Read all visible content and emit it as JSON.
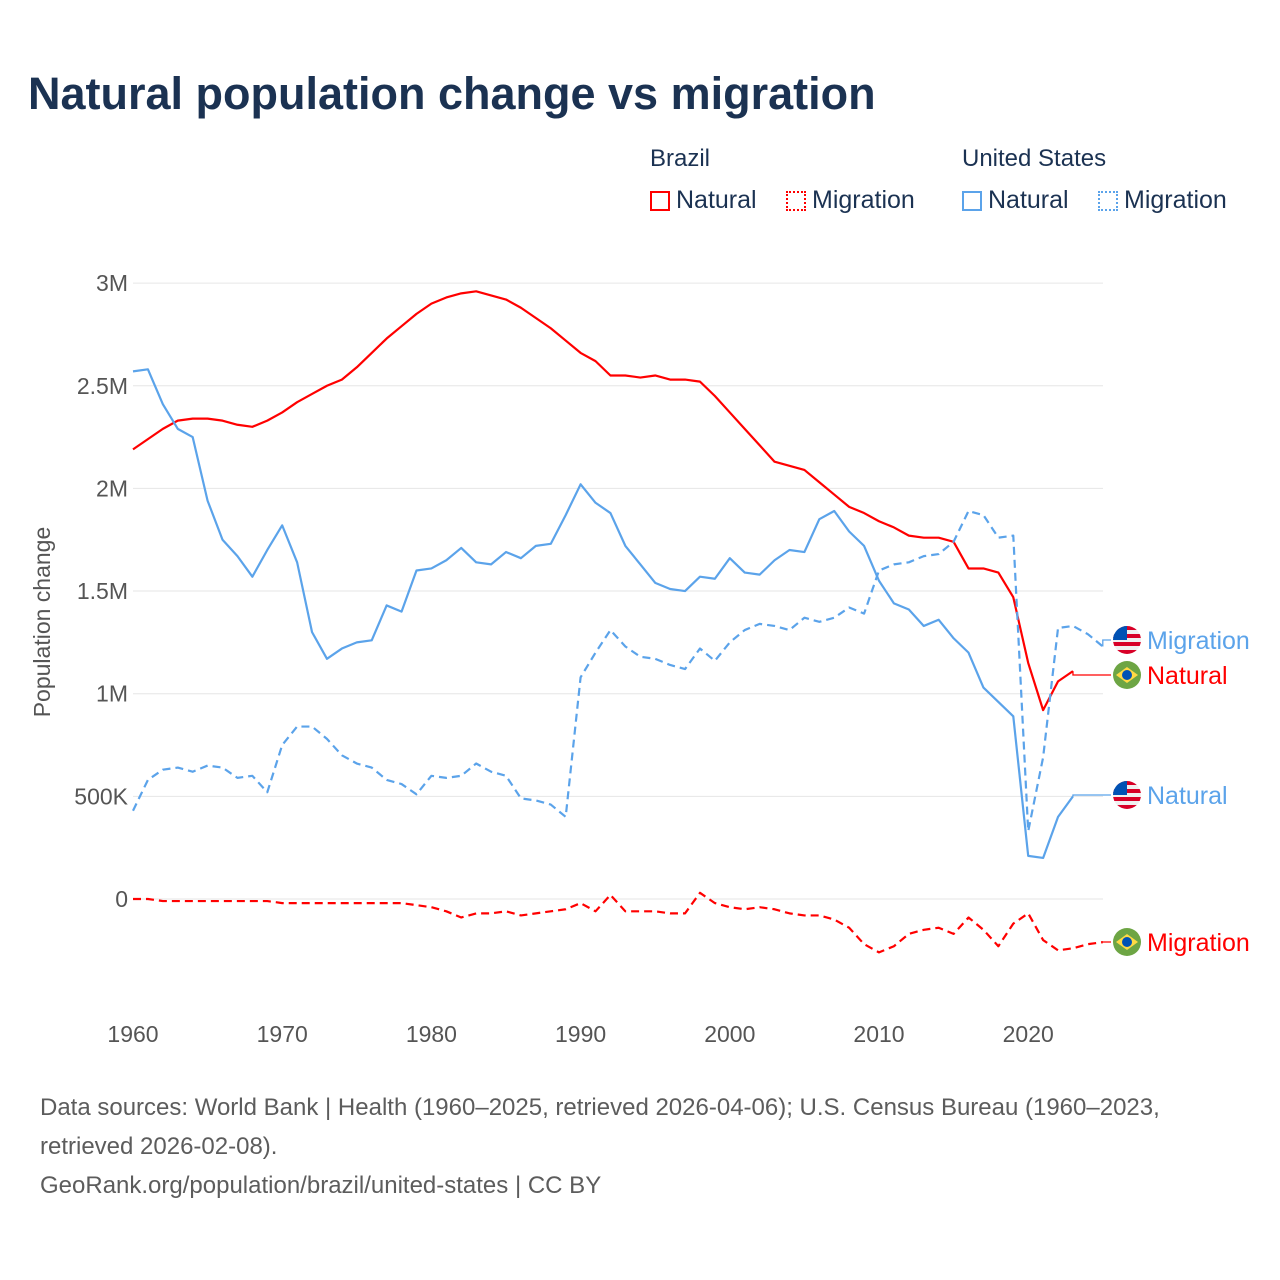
{
  "chart_data": {
    "type": "line",
    "title": "Natural population change vs migration",
    "xlabel": "",
    "ylabel": "Population change",
    "xlim": [
      1960,
      2025
    ],
    "ylim": [
      -0.3,
      3.1
    ],
    "x_ticks": [
      "1960",
      "1970",
      "1980",
      "1990",
      "2000",
      "2010",
      "2020"
    ],
    "y_ticks": [
      {
        "v": 0,
        "label": "0"
      },
      {
        "v": 0.5,
        "label": "500K"
      },
      {
        "v": 1,
        "label": "1M"
      },
      {
        "v": 1.5,
        "label": "1.5M"
      },
      {
        "v": 2,
        "label": "2M"
      },
      {
        "v": 2.5,
        "label": "2.5M"
      },
      {
        "v": 3,
        "label": "3M"
      }
    ],
    "units": "millions",
    "grid": true,
    "legend": {
      "placement": "top-right",
      "groups": [
        {
          "label": "Brazil",
          "items": [
            "Natural",
            "Migration"
          ]
        },
        {
          "label": "United States",
          "items": [
            "Natural",
            "Migration"
          ]
        }
      ]
    },
    "series": [
      {
        "name": "Brazil Natural",
        "country": "Brazil",
        "label": "Natural",
        "color": "#ff0000",
        "dash": false,
        "start": 1960,
        "values": [
          2.19,
          2.24,
          2.29,
          2.33,
          2.34,
          2.34,
          2.33,
          2.31,
          2.3,
          2.33,
          2.37,
          2.42,
          2.46,
          2.5,
          2.53,
          2.59,
          2.66,
          2.73,
          2.79,
          2.85,
          2.9,
          2.93,
          2.95,
          2.96,
          2.94,
          2.92,
          2.88,
          2.83,
          2.78,
          2.72,
          2.66,
          2.62,
          2.55,
          2.55,
          2.54,
          2.55,
          2.53,
          2.53,
          2.52,
          2.45,
          2.37,
          2.29,
          2.21,
          2.13,
          2.11,
          2.09,
          2.03,
          1.97,
          1.91,
          1.88,
          1.84,
          1.81,
          1.77,
          1.76,
          1.76,
          1.74,
          1.61,
          1.61,
          1.59,
          1.47,
          1.15,
          0.92,
          1.06,
          1.11
        ]
      },
      {
        "name": "Brazil Migration",
        "country": "Brazil",
        "label": "Migration",
        "color": "#ff0000",
        "dash": true,
        "start": 1960,
        "values": [
          0.0,
          0.0,
          -0.01,
          -0.01,
          -0.01,
          -0.01,
          -0.01,
          -0.01,
          -0.01,
          -0.01,
          -0.02,
          -0.02,
          -0.02,
          -0.02,
          -0.02,
          -0.02,
          -0.02,
          -0.02,
          -0.02,
          -0.03,
          -0.04,
          -0.06,
          -0.09,
          -0.07,
          -0.07,
          -0.06,
          -0.08,
          -0.07,
          -0.06,
          -0.05,
          -0.02,
          -0.06,
          0.02,
          -0.06,
          -0.06,
          -0.06,
          -0.07,
          -0.07,
          0.03,
          -0.02,
          -0.04,
          -0.05,
          -0.04,
          -0.05,
          -0.07,
          -0.08,
          -0.08,
          -0.1,
          -0.14,
          -0.22,
          -0.26,
          -0.23,
          -0.17,
          -0.15,
          -0.14,
          -0.17,
          -0.09,
          -0.15,
          -0.23,
          -0.12,
          -0.07,
          -0.2,
          -0.25,
          -0.24,
          -0.22,
          -0.21
        ]
      },
      {
        "name": "United States Natural",
        "country": "United States",
        "label": "Natural",
        "color": "#5ba3ea",
        "dash": false,
        "start": 1960,
        "values": [
          2.57,
          2.58,
          2.41,
          2.29,
          2.25,
          1.94,
          1.75,
          1.67,
          1.57,
          1.7,
          1.82,
          1.64,
          1.3,
          1.17,
          1.22,
          1.25,
          1.26,
          1.43,
          1.4,
          1.6,
          1.61,
          1.65,
          1.71,
          1.64,
          1.63,
          1.69,
          1.66,
          1.72,
          1.73,
          1.87,
          2.02,
          1.93,
          1.88,
          1.72,
          1.63,
          1.54,
          1.51,
          1.5,
          1.57,
          1.56,
          1.66,
          1.59,
          1.58,
          1.65,
          1.7,
          1.69,
          1.85,
          1.89,
          1.79,
          1.72,
          1.55,
          1.44,
          1.41,
          1.33,
          1.36,
          1.27,
          1.2,
          1.03,
          0.96,
          0.89,
          0.21,
          0.2,
          0.4,
          0.5
        ]
      },
      {
        "name": "United States Migration",
        "country": "United States",
        "label": "Migration",
        "color": "#5ba3ea",
        "dash": true,
        "start": 1960,
        "values": [
          0.43,
          0.58,
          0.63,
          0.64,
          0.62,
          0.65,
          0.64,
          0.59,
          0.6,
          0.52,
          0.75,
          0.84,
          0.84,
          0.78,
          0.7,
          0.66,
          0.64,
          0.58,
          0.56,
          0.51,
          0.6,
          0.59,
          0.6,
          0.66,
          0.62,
          0.6,
          0.49,
          0.48,
          0.46,
          0.4,
          1.08,
          1.2,
          1.31,
          1.23,
          1.18,
          1.17,
          1.14,
          1.12,
          1.22,
          1.16,
          1.25,
          1.31,
          1.34,
          1.33,
          1.31,
          1.37,
          1.35,
          1.37,
          1.42,
          1.39,
          1.6,
          1.63,
          1.64,
          1.67,
          1.68,
          1.74,
          1.89,
          1.87,
          1.76,
          1.77,
          0.33,
          0.69,
          1.32,
          1.33,
          1.29,
          1.23
        ]
      }
    ]
  },
  "legend": {
    "brazil": "Brazil",
    "us": "United States",
    "natural": "Natural",
    "migration": "Migration"
  },
  "footer": {
    "sources": "Data sources: World Bank | Health (1960–2025, retrieved 2026-04-06); U.S. Census Bureau (1960–2023, retrieved 2026-02-08).",
    "credit": "GeoRank.org/population/brazil/united-states | CC BY"
  }
}
